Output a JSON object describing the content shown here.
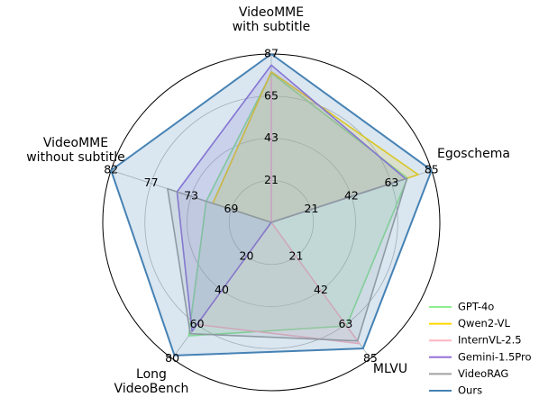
{
  "chart_data": {
    "type": "radar",
    "axes": [
      {
        "key": "videomme_sub",
        "label_lines": [
          "VideoMME",
          "with subtitle"
        ],
        "ticks": [
          "21",
          "43",
          "65",
          "87"
        ],
        "max": 87
      },
      {
        "key": "egoschema",
        "label_lines": [
          "Egoschema"
        ],
        "ticks": [
          "21",
          "42",
          "63",
          "85"
        ],
        "max": 85
      },
      {
        "key": "mlvu",
        "label_lines": [
          "MLVU"
        ],
        "ticks": [
          "21",
          "42",
          "63",
          "85"
        ],
        "max": 85
      },
      {
        "key": "longvideobench",
        "label_lines": [
          "Long",
          "VideoBench"
        ],
        "ticks": [
          "20",
          "40",
          "60",
          "80"
        ],
        "max": 80
      },
      {
        "key": "videomme_nosub",
        "label_lines": [
          "VideoMME",
          "without subtitle"
        ],
        "ticks": [
          "69",
          "73",
          "77",
          "82"
        ],
        "min": 65,
        "max": 82
      }
    ],
    "grid": true,
    "legend_position": "bottom-right",
    "series": [
      {
        "name": "GPT-4o",
        "color": "#90ee90",
        "fill_opacity": 0.18,
        "values": [
          77.2,
          72.2,
          64.6,
          66.7,
          71.9
        ]
      },
      {
        "name": "Qwen2-VL",
        "color": "#ffd700",
        "fill_opacity": 0.18,
        "values": [
          77.8,
          77.9,
          0,
          0,
          71.2
        ]
      },
      {
        "name": "InternVL-2.5",
        "color": "#ffb6c1",
        "fill_opacity": 0.18,
        "values": [
          74.0,
          0,
          75.7,
          60.0,
          0
        ]
      },
      {
        "name": "Gemini-1.5Pro",
        "color": "#9370db",
        "fill_opacity": 0.18,
        "values": [
          81.3,
          71.2,
          0,
          64.0,
          75.0
        ]
      },
      {
        "name": "VideoRAG",
        "color": "#a0a0a0",
        "fill_opacity": 0.15,
        "values": [
          0,
          72.0,
          74.0,
          65.4,
          76.0
        ]
      },
      {
        "name": "Ours",
        "color": "#4682b4",
        "fill_opacity": 0.2,
        "values": [
          87.0,
          85.0,
          78.7,
          78.2,
          82.0
        ]
      }
    ]
  }
}
